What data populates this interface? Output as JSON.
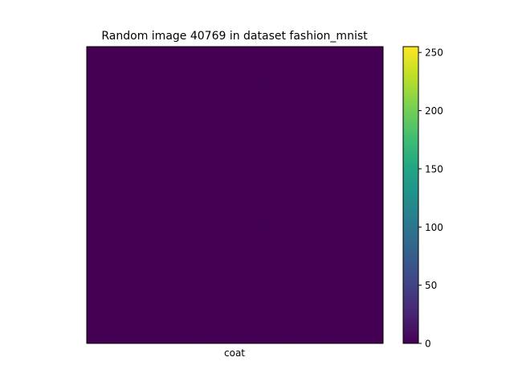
{
  "chart_data": {
    "type": "heatmap",
    "title": "Random image 40769 in dataset fashion_mnist",
    "xlabel": "coat",
    "ylabel": "",
    "colormap": "viridis",
    "colorbar": {
      "min": 0,
      "max": 255,
      "ticks": [
        0,
        50,
        100,
        150,
        200,
        250
      ],
      "tick_labels": [
        "0",
        "50",
        "100",
        "150",
        "200",
        "250"
      ]
    },
    "grid": false,
    "axes_ticks_visible": false,
    "rows": 28,
    "cols": 28,
    "values": [
      [
        0,
        0,
        0,
        0,
        0,
        0,
        0,
        0,
        0,
        0,
        0,
        0,
        0,
        0,
        0,
        0,
        0,
        0,
        0,
        0,
        0,
        0,
        0,
        0,
        0,
        0,
        0,
        0
      ],
      [
        0,
        0,
        0,
        0,
        0,
        0,
        0,
        0,
        0,
        0,
        0,
        0,
        0,
        0,
        0,
        0,
        0,
        0,
        0,
        0,
        0,
        0,
        0,
        0,
        0,
        0,
        0,
        0
      ],
      [
        0,
        0,
        0,
        0,
        0,
        0,
        0,
        0,
        0,
        0,
        0,
        0,
        0,
        0,
        0,
        0,
        0,
        0,
        0,
        0,
        0,
        0,
        0,
        0,
        0,
        0,
        0,
        0
      ],
      [
        0,
        0,
        0,
        0,
        0,
        0,
        0,
        0,
        0,
        0,
        0,
        0,
        0,
        0,
        0,
        0,
        0,
        0,
        0,
        0,
        0,
        0,
        0,
        0,
        0,
        0,
        0,
        0
      ],
      [
        0,
        0,
        0,
        0,
        0,
        0,
        0,
        0,
        0,
        0,
        0,
        0,
        0,
        0,
        0,
        0,
        0,
        0,
        0,
        0,
        0,
        0,
        0,
        0,
        0,
        0,
        0,
        0
      ],
      [
        0,
        0,
        0,
        0,
        0,
        0,
        0,
        0,
        0,
        0,
        0,
        0,
        0,
        0,
        0,
        0,
        0,
        0,
        0,
        0,
        0,
        0,
        0,
        0,
        0,
        0,
        0,
        0
      ],
      [
        0,
        0,
        0,
        0,
        0,
        0,
        0,
        0,
        0,
        0,
        0,
        0,
        0,
        0,
        0,
        0,
        0,
        0,
        0,
        0,
        0,
        0,
        0,
        0,
        0,
        0,
        0,
        0
      ],
      [
        0,
        0,
        0,
        0,
        0,
        0,
        0,
        0,
        0,
        0,
        0,
        0,
        0,
        0,
        0,
        0,
        0,
        0,
        0,
        0,
        0,
        0,
        0,
        0,
        0,
        0,
        0,
        0
      ],
      [
        0,
        0,
        0,
        0,
        0,
        0,
        0,
        0,
        0,
        0,
        0,
        0,
        0,
        0,
        0,
        0,
        0,
        0,
        0,
        0,
        0,
        0,
        0,
        0,
        0,
        0,
        0,
        0
      ],
      [
        0,
        0,
        0,
        0,
        0,
        0,
        0,
        0,
        0,
        0,
        0,
        0,
        0,
        0,
        0,
        0,
        0,
        0,
        0,
        0,
        0,
        0,
        0,
        0,
        0,
        0,
        0,
        0
      ],
      [
        0,
        0,
        0,
        0,
        0,
        0,
        0,
        0,
        0,
        0,
        0,
        0,
        0,
        0,
        0,
        0,
        0,
        0,
        0,
        0,
        0,
        0,
        0,
        0,
        0,
        0,
        0,
        0
      ],
      [
        0,
        0,
        0,
        0,
        0,
        0,
        0,
        0,
        0,
        0,
        0,
        0,
        0,
        0,
        0,
        0,
        0,
        0,
        0,
        0,
        0,
        0,
        0,
        0,
        0,
        0,
        0,
        0
      ],
      [
        0,
        0,
        0,
        0,
        0,
        0,
        0,
        0,
        0,
        0,
        0,
        0,
        0,
        0,
        0,
        0,
        0,
        0,
        0,
        0,
        0,
        0,
        0,
        0,
        0,
        0,
        0,
        0
      ],
      [
        0,
        0,
        0,
        0,
        0,
        0,
        0,
        0,
        0,
        0,
        0,
        0,
        0,
        0,
        0,
        0,
        0,
        0,
        0,
        0,
        0,
        0,
        0,
        0,
        0,
        0,
        0,
        0
      ],
      [
        0,
        0,
        0,
        0,
        0,
        0,
        0,
        0,
        0,
        0,
        0,
        0,
        0,
        0,
        0,
        0,
        0,
        0,
        0,
        0,
        0,
        0,
        0,
        0,
        0,
        0,
        0,
        0
      ],
      [
        0,
        0,
        0,
        0,
        0,
        0,
        0,
        0,
        0,
        0,
        0,
        0,
        0,
        0,
        0,
        0,
        0,
        0,
        0,
        0,
        0,
        0,
        0,
        0,
        0,
        0,
        0,
        0
      ],
      [
        0,
        0,
        0,
        0,
        0,
        0,
        0,
        0,
        0,
        0,
        0,
        0,
        0,
        0,
        0,
        0,
        0,
        0,
        0,
        0,
        0,
        0,
        0,
        0,
        0,
        0,
        0,
        0
      ],
      [
        0,
        0,
        0,
        0,
        0,
        0,
        0,
        0,
        0,
        0,
        0,
        0,
        0,
        0,
        0,
        0,
        0,
        0,
        0,
        0,
        0,
        0,
        0,
        0,
        0,
        0,
        0,
        0
      ],
      [
        0,
        0,
        0,
        0,
        0,
        0,
        0,
        0,
        0,
        0,
        0,
        0,
        0,
        0,
        0,
        0,
        0,
        0,
        0,
        0,
        0,
        0,
        0,
        0,
        0,
        0,
        0,
        0
      ],
      [
        0,
        0,
        0,
        0,
        0,
        0,
        0,
        0,
        0,
        0,
        0,
        0,
        0,
        0,
        0,
        0,
        0,
        0,
        0,
        0,
        0,
        0,
        0,
        0,
        0,
        0,
        0,
        0
      ],
      [
        0,
        0,
        0,
        0,
        0,
        0,
        0,
        0,
        0,
        0,
        0,
        0,
        0,
        0,
        0,
        0,
        0,
        0,
        0,
        0,
        0,
        0,
        0,
        0,
        0,
        0,
        0,
        0
      ],
      [
        0,
        0,
        0,
        0,
        0,
        0,
        0,
        0,
        0,
        0,
        0,
        0,
        0,
        0,
        0,
        0,
        0,
        0,
        0,
        0,
        0,
        0,
        0,
        0,
        0,
        0,
        0,
        0
      ],
      [
        0,
        0,
        0,
        0,
        0,
        0,
        0,
        0,
        0,
        0,
        0,
        0,
        0,
        0,
        0,
        0,
        0,
        0,
        0,
        0,
        0,
        0,
        0,
        0,
        0,
        0,
        0,
        0
      ],
      [
        0,
        0,
        0,
        0,
        0,
        0,
        0,
        0,
        0,
        0,
        0,
        0,
        0,
        0,
        0,
        0,
        0,
        0,
        0,
        0,
        0,
        0,
        0,
        0,
        0,
        0,
        0,
        0
      ],
      [
        0,
        0,
        0,
        0,
        0,
        0,
        0,
        0,
        0,
        0,
        0,
        0,
        0,
        0,
        0,
        0,
        0,
        0,
        0,
        0,
        0,
        0,
        0,
        0,
        0,
        0,
        0,
        0
      ],
      [
        0,
        0,
        0,
        0,
        0,
        0,
        0,
        0,
        0,
        0,
        0,
        0,
        0,
        0,
        0,
        0,
        0,
        0,
        0,
        0,
        0,
        0,
        0,
        0,
        0,
        0,
        0,
        0
      ],
      [
        0,
        0,
        0,
        0,
        0,
        0,
        0,
        0,
        0,
        0,
        0,
        0,
        0,
        0,
        0,
        0,
        0,
        0,
        0,
        0,
        0,
        0,
        0,
        0,
        0,
        0,
        0,
        0
      ],
      [
        0,
        0,
        0,
        0,
        0,
        0,
        0,
        0,
        0,
        0,
        0,
        0,
        0,
        0,
        0,
        0,
        0,
        0,
        0,
        0,
        0,
        0,
        0,
        0,
        0,
        0,
        0,
        0
      ]
    ]
  }
}
